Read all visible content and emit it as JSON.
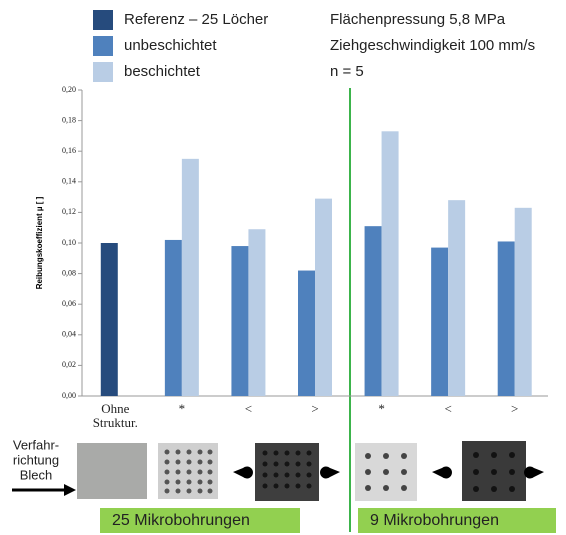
{
  "chart_data": {
    "type": "bar",
    "y_label": "Reibungskoeffizient µ [ ]",
    "categories": [
      "Ohne Struktur.",
      "*",
      "<",
      ">",
      "*",
      "<",
      ">"
    ],
    "series": [
      {
        "name": "Referenz – 25 Löcher",
        "color": "#264b7d",
        "values": [
          0.1,
          null,
          null,
          null,
          null,
          null,
          null
        ]
      },
      {
        "name": "unbeschichtet",
        "color": "#4f81bd",
        "values": [
          null,
          0.102,
          0.098,
          0.082,
          0.111,
          0.097,
          0.101
        ]
      },
      {
        "name": "beschichtet",
        "color": "#b9cde5",
        "values": [
          null,
          0.155,
          0.109,
          0.129,
          0.173,
          0.128,
          0.123
        ]
      }
    ],
    "ylim": [
      0,
      0.2
    ],
    "yticks": [
      {
        "value": 0,
        "label": "0,00"
      },
      {
        "value": 0.02,
        "label": "0,02"
      },
      {
        "value": 0.04,
        "label": "0,04"
      },
      {
        "value": 0.06,
        "label": "0,06"
      },
      {
        "value": 0.08,
        "label": "0,08"
      },
      {
        "value": 0.1,
        "label": "0,10"
      },
      {
        "value": 0.12,
        "label": "0,12"
      },
      {
        "value": 0.14,
        "label": "0,14"
      },
      {
        "value": 0.16,
        "label": "0,16"
      },
      {
        "value": 0.18,
        "label": "0,18"
      },
      {
        "value": 0.2,
        "label": "0,20"
      }
    ],
    "grid": false,
    "conditions": [
      "Flächenpressung 5,8 MPa",
      "Ziehgeschwindigkeit 100 mm/s",
      "n = 5"
    ],
    "direction_label": [
      "Verfahr-",
      "richtung",
      "Blech"
    ],
    "group_labels": [
      "25 Mikrobohrungen",
      "9 Mikrobohrungen"
    ]
  }
}
